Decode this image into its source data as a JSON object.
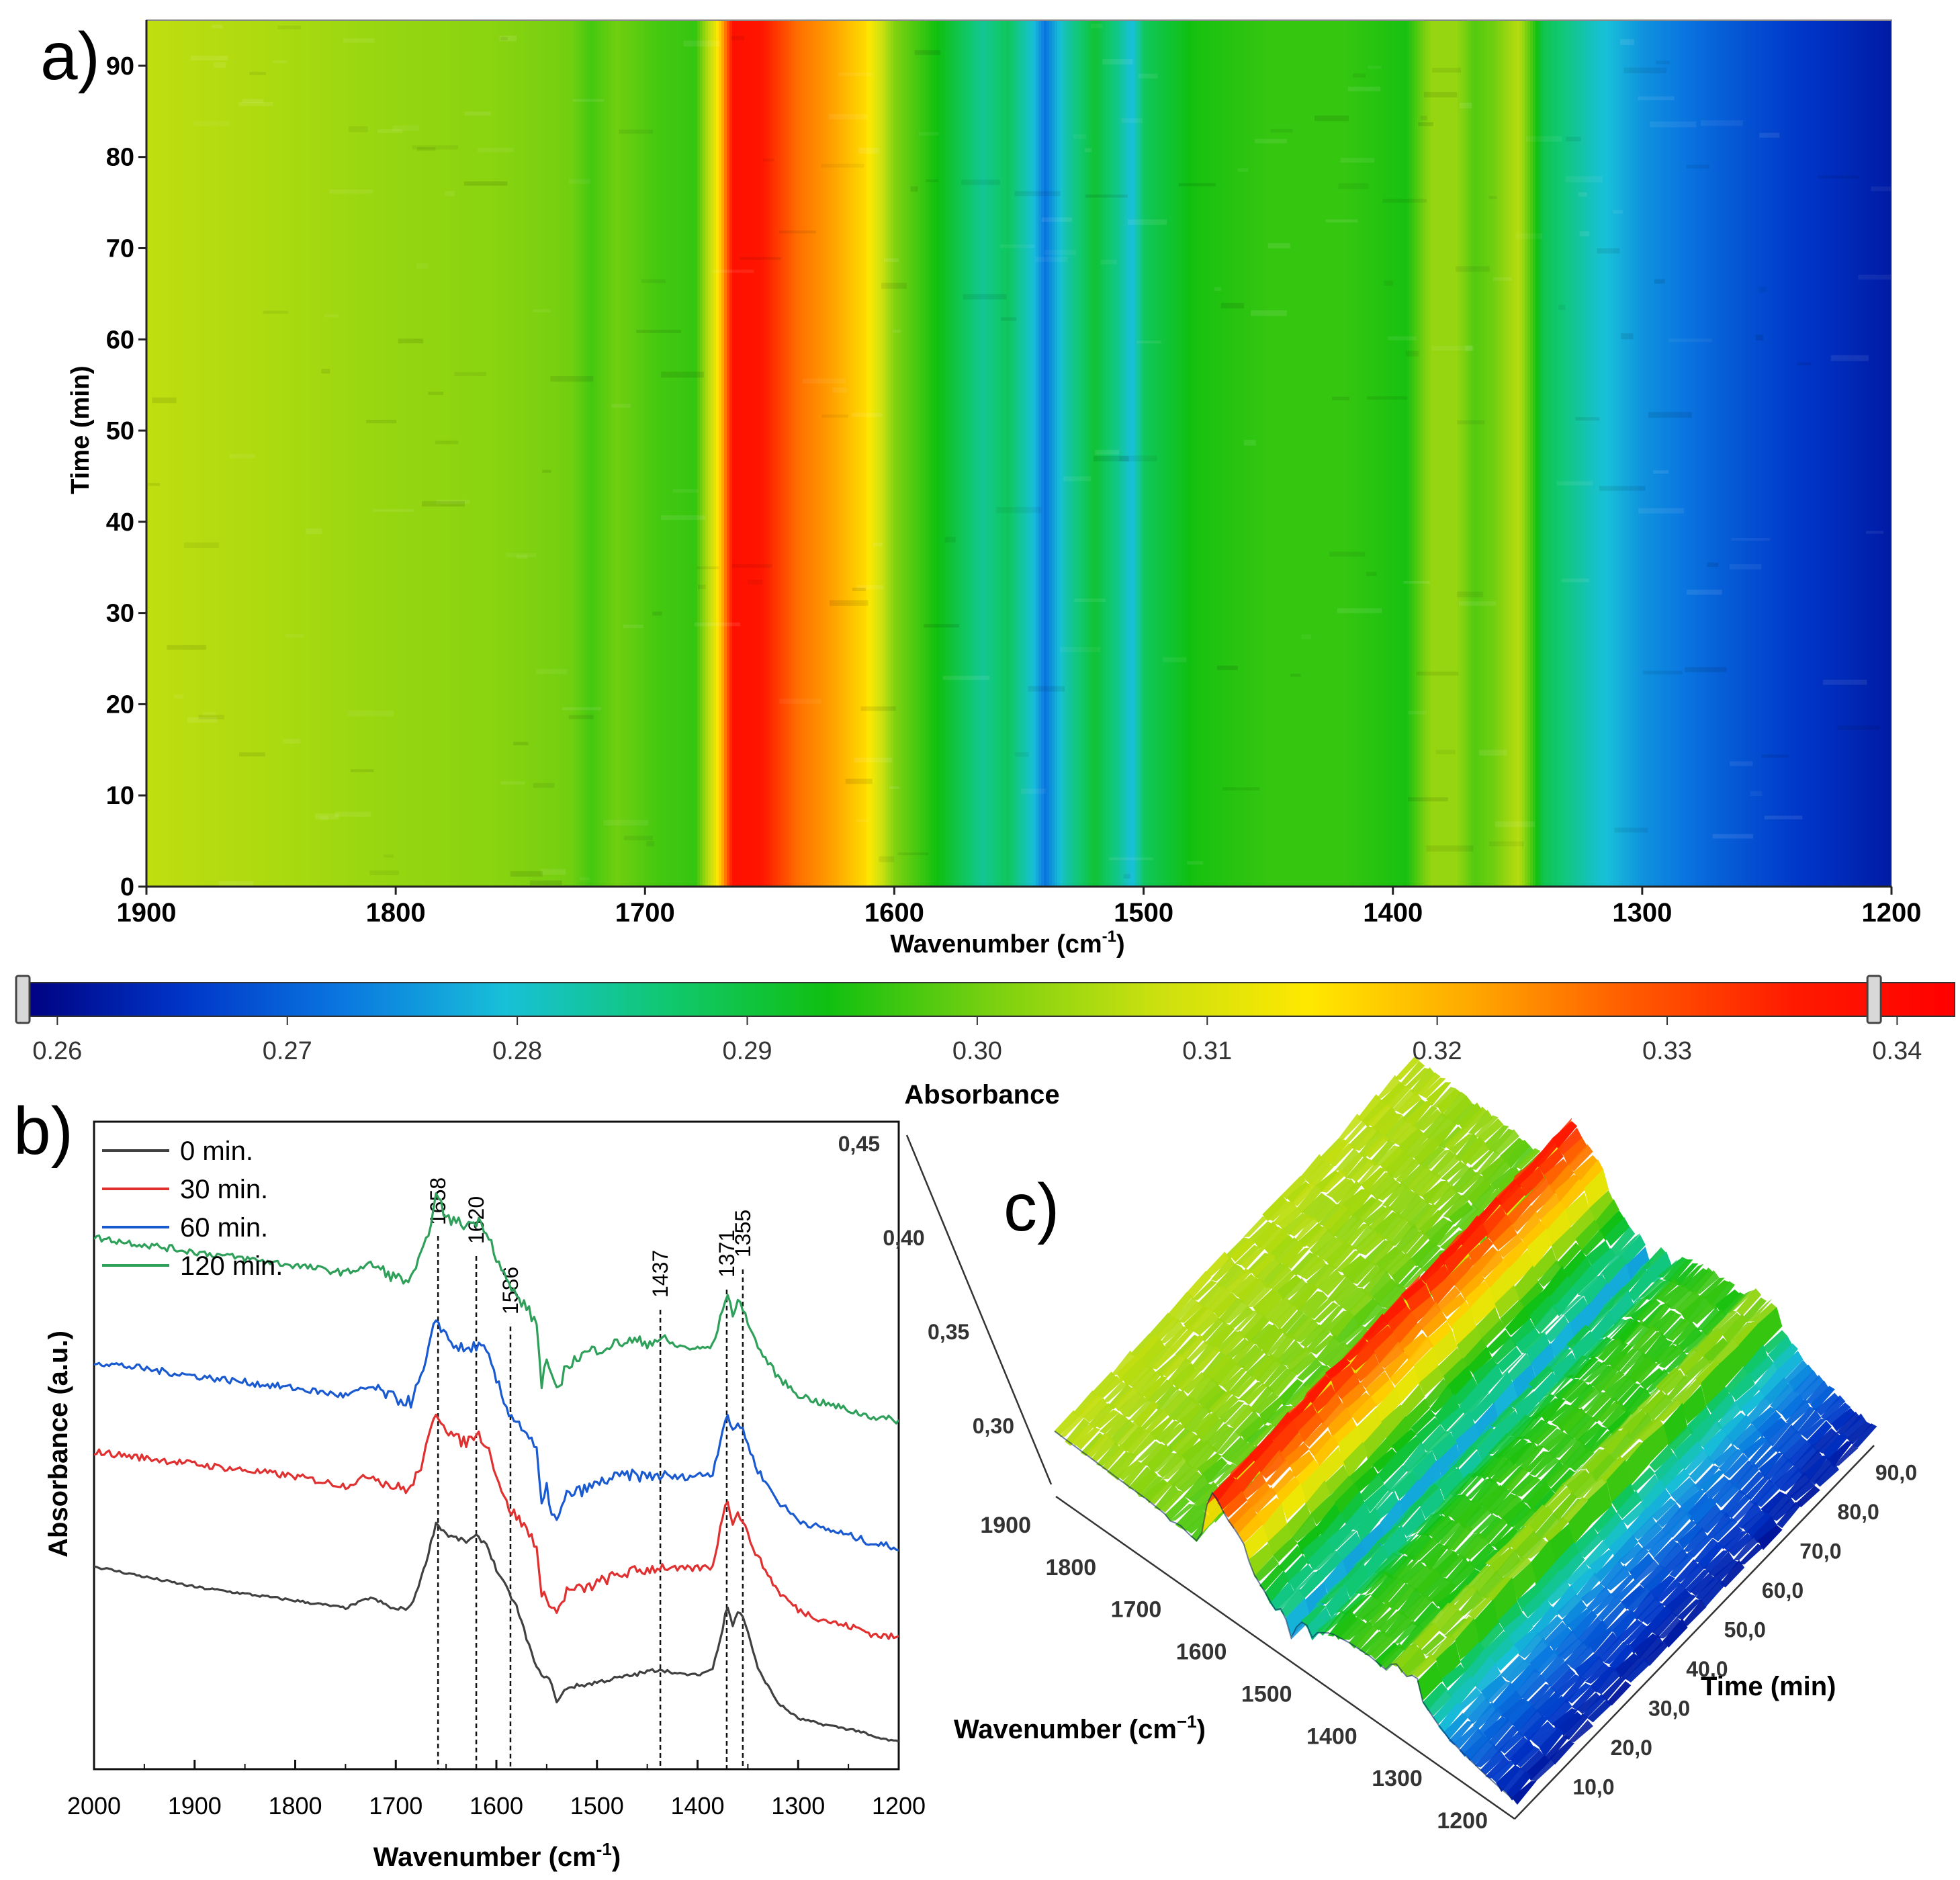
{
  "chart_data": [
    {
      "panel_label": "a)",
      "type": "heatmap",
      "xlabel": "Wavenumber (cm",
      "xlabel_sup": "-1",
      "xlabel_end": ")",
      "ylabel": "Time (min)",
      "xlim": [
        1900,
        1200
      ],
      "ylim": [
        0,
        95
      ],
      "x_ticks": [
        "1900",
        "1800",
        "1700",
        "1600",
        "1500",
        "1400",
        "1300",
        "1200"
      ],
      "x_tick_values": [
        1900,
        1800,
        1700,
        1600,
        1500,
        1400,
        1300,
        1200
      ],
      "y_ticks": [
        "0",
        "10",
        "20",
        "30",
        "40",
        "50",
        "60",
        "70",
        "80",
        "90"
      ],
      "y_tick_values": [
        0,
        10,
        20,
        30,
        40,
        50,
        60,
        70,
        80,
        90
      ],
      "absorbance_profile": {
        "wavenumber": [
          1905,
          1880,
          1850,
          1800,
          1760,
          1730,
          1722,
          1712,
          1695,
          1680,
          1672,
          1665,
          1655,
          1640,
          1625,
          1612,
          1600,
          1580,
          1565,
          1555,
          1545,
          1540,
          1532,
          1520,
          1510,
          1505,
          1500,
          1480,
          1450,
          1420,
          1395,
          1385,
          1375,
          1368,
          1360,
          1350,
          1340,
          1320,
          1300,
          1270,
          1240,
          1210,
          1200
        ],
        "absorbance": [
          0.307,
          0.306,
          0.305,
          0.303,
          0.302,
          0.3,
          0.297,
          0.3,
          0.297,
          0.296,
          0.312,
          0.338,
          0.337,
          0.327,
          0.322,
          0.316,
          0.301,
          0.292,
          0.284,
          0.288,
          0.28,
          0.272,
          0.282,
          0.291,
          0.284,
          0.279,
          0.288,
          0.294,
          0.296,
          0.296,
          0.294,
          0.303,
          0.303,
          0.298,
          0.3,
          0.306,
          0.289,
          0.281,
          0.275,
          0.27,
          0.266,
          0.263,
          0.262
        ]
      },
      "colorbar": {
        "label": "Absorbance",
        "min": 0.2585,
        "max": 0.3425,
        "range_handles": [
          0.2585,
          0.339
        ],
        "ticks": [
          "0.26",
          "0.27",
          "0.28",
          "0.29",
          "0.30",
          "0.31",
          "0.32",
          "0.33",
          "0.34"
        ],
        "tick_values": [
          0.26,
          0.27,
          0.28,
          0.29,
          0.3,
          0.31,
          0.32,
          0.33,
          0.34
        ],
        "colors": [
          "#00007f",
          "#0035c8",
          "#0a78e0",
          "#18c0d8",
          "#10c870",
          "#10c010",
          "#78d010",
          "#c8e010",
          "#ffe800",
          "#ffa800",
          "#ff5a00",
          "#ff1a00",
          "#ff0000"
        ]
      }
    },
    {
      "panel_label": "b)",
      "type": "line",
      "xlabel": "Wavenumber (cm",
      "xlabel_sup": "-1",
      "xlabel_end": ")",
      "ylabel": "Absorbance (a.u.)",
      "xlim": [
        2000,
        1200
      ],
      "x_ticks": [
        "2000",
        "1900",
        "1800",
        "1700",
        "1600",
        "1500",
        "1400",
        "1300",
        "1200"
      ],
      "x_tick_values": [
        2000,
        1900,
        1800,
        1700,
        1600,
        1500,
        1400,
        1300,
        1200
      ],
      "ylim": [
        0,
        1
      ],
      "legend_position": "top-left",
      "series": [
        {
          "name": "0 min.",
          "color": "#404040",
          "x": [
            2000,
            1900,
            1800,
            1750,
            1725,
            1700,
            1685,
            1672,
            1660,
            1648,
            1630,
            1620,
            1610,
            1600,
            1590,
            1580,
            1570,
            1560,
            1550,
            1545,
            1540,
            1530,
            1510,
            1490,
            1470,
            1450,
            1437,
            1420,
            1400,
            1385,
            1375,
            1371,
            1365,
            1360,
            1355,
            1350,
            1340,
            1320,
            1300,
            1280,
            1260,
            1240,
            1225,
            1200
          ],
          "y": [
            0.305,
            0.272,
            0.25,
            0.238,
            0.255,
            0.235,
            0.24,
            0.3,
            0.375,
            0.355,
            0.345,
            0.353,
            0.342,
            0.3,
            0.27,
            0.24,
            0.19,
            0.14,
            0.125,
            0.118,
            0.085,
            0.11,
            0.115,
            0.122,
            0.128,
            0.135,
            0.14,
            0.132,
            0.13,
            0.14,
            0.205,
            0.245,
            0.21,
            0.232,
            0.225,
            0.2,
            0.14,
            0.085,
            0.06,
            0.052,
            0.046,
            0.04,
            0.03,
            0.022
          ]
        },
        {
          "name": "30 min.",
          "color": "#e03030",
          "x": [
            2000,
            1900,
            1800,
            1750,
            1725,
            1700,
            1685,
            1672,
            1660,
            1648,
            1640,
            1630,
            1620,
            1610,
            1600,
            1590,
            1580,
            1570,
            1560,
            1555,
            1550,
            1545,
            1540,
            1530,
            1510,
            1490,
            1470,
            1450,
            1437,
            1420,
            1400,
            1385,
            1375,
            1371,
            1365,
            1360,
            1355,
            1350,
            1340,
            1320,
            1300,
            1280,
            1260,
            1240,
            1225,
            1200
          ],
          "y": [
            0.49,
            0.47,
            0.45,
            0.435,
            0.452,
            0.432,
            0.43,
            0.48,
            0.555,
            0.525,
            0.51,
            0.505,
            0.52,
            0.505,
            0.455,
            0.405,
            0.385,
            0.365,
            0.34,
            0.25,
            0.26,
            0.24,
            0.23,
            0.265,
            0.27,
            0.285,
            0.295,
            0.3,
            0.305,
            0.3,
            0.302,
            0.305,
            0.385,
            0.42,
            0.375,
            0.39,
            0.38,
            0.355,
            0.32,
            0.265,
            0.235,
            0.222,
            0.212,
            0.205,
            0.195,
            0.19
          ]
        },
        {
          "name": "60 min.",
          "color": "#1a5ad0",
          "x": [
            2000,
            1900,
            1800,
            1750,
            1725,
            1700,
            1685,
            1672,
            1660,
            1648,
            1640,
            1630,
            1620,
            1610,
            1600,
            1590,
            1580,
            1570,
            1560,
            1555,
            1550,
            1545,
            1540,
            1530,
            1510,
            1490,
            1470,
            1450,
            1437,
            1420,
            1400,
            1385,
            1375,
            1371,
            1365,
            1360,
            1355,
            1350,
            1340,
            1320,
            1300,
            1280,
            1260,
            1240,
            1225,
            1200
          ],
          "y": [
            0.635,
            0.612,
            0.592,
            0.58,
            0.594,
            0.575,
            0.57,
            0.62,
            0.705,
            0.672,
            0.66,
            0.652,
            0.662,
            0.65,
            0.605,
            0.56,
            0.54,
            0.52,
            0.49,
            0.4,
            0.43,
            0.395,
            0.375,
            0.42,
            0.43,
            0.445,
            0.452,
            0.45,
            0.452,
            0.448,
            0.452,
            0.455,
            0.525,
            0.555,
            0.52,
            0.535,
            0.528,
            0.5,
            0.46,
            0.41,
            0.38,
            0.368,
            0.36,
            0.35,
            0.342,
            0.335
          ]
        },
        {
          "name": "120 min.",
          "color": "#2ea05a",
          "x": [
            2000,
            1900,
            1800,
            1750,
            1725,
            1700,
            1685,
            1672,
            1660,
            1648,
            1640,
            1630,
            1620,
            1610,
            1600,
            1590,
            1580,
            1570,
            1560,
            1555,
            1550,
            1545,
            1540,
            1530,
            1510,
            1490,
            1470,
            1450,
            1437,
            1420,
            1400,
            1385,
            1375,
            1371,
            1365,
            1360,
            1355,
            1350,
            1340,
            1320,
            1300,
            1280,
            1260,
            1240,
            1225,
            1200
          ],
          "y": [
            0.835,
            0.812,
            0.79,
            0.778,
            0.792,
            0.77,
            0.765,
            0.815,
            0.9,
            0.865,
            0.86,
            0.855,
            0.862,
            0.85,
            0.805,
            0.765,
            0.74,
            0.722,
            0.695,
            0.6,
            0.64,
            0.605,
            0.585,
            0.63,
            0.65,
            0.66,
            0.668,
            0.666,
            0.672,
            0.66,
            0.655,
            0.66,
            0.718,
            0.748,
            0.712,
            0.73,
            0.722,
            0.7,
            0.658,
            0.61,
            0.582,
            0.57,
            0.562,
            0.552,
            0.546,
            0.54
          ]
        }
      ],
      "annotations": [
        {
          "label": "1658",
          "x": 1658
        },
        {
          "label": "1620",
          "x": 1620
        },
        {
          "label": "1586",
          "x": 1586
        },
        {
          "label": "1437",
          "x": 1437
        },
        {
          "label": "1371",
          "x": 1371
        },
        {
          "label": "1355",
          "x": 1355
        }
      ]
    },
    {
      "panel_label": "c)",
      "type": "area",
      "view": "3d-surface",
      "xlabel": "Wavenumber (cm",
      "xlabel_sup": "−1",
      "xlabel_end": ")",
      "ylabel": "Time (min)",
      "zlim": [
        0.3,
        0.45
      ],
      "x_ticks": [
        "1900",
        "1800",
        "1700",
        "1600",
        "1500",
        "1400",
        "1300",
        "1200"
      ],
      "x_tick_values": [
        1900,
        1800,
        1700,
        1600,
        1500,
        1400,
        1300,
        1200
      ],
      "y_ticks": [
        "10,0",
        "20,0",
        "30,0",
        "40,0",
        "50,0",
        "60,0",
        "70,0",
        "80,0",
        "90,0"
      ],
      "y_tick_values": [
        10,
        20,
        30,
        40,
        50,
        60,
        70,
        80,
        90
      ],
      "z_ticks": [
        "0,30",
        "0,35",
        "0,40",
        "0,45"
      ],
      "z_tick_values": [
        0.3,
        0.35,
        0.4,
        0.45
      ]
    }
  ]
}
